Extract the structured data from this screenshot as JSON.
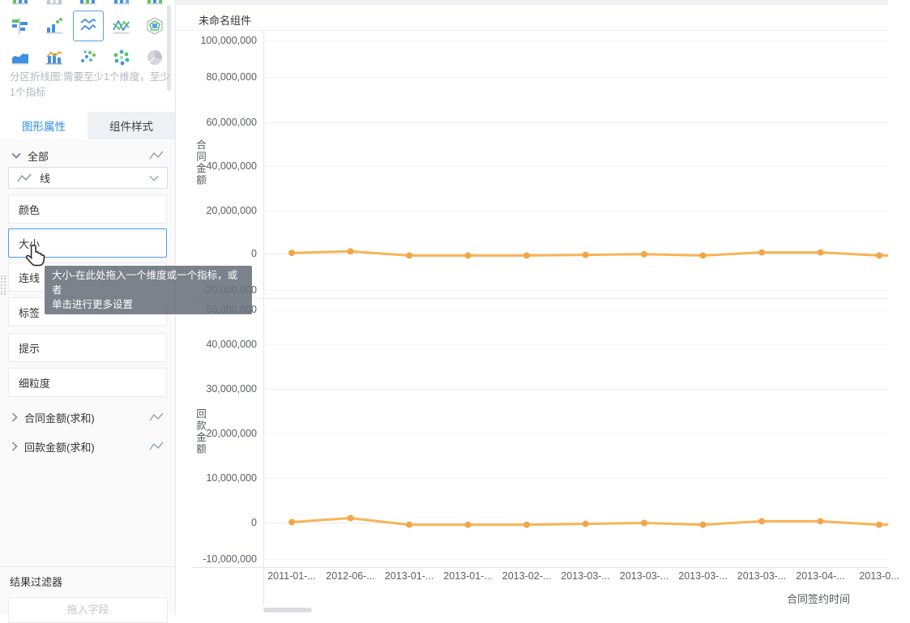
{
  "sidebar": {
    "chart_type_icons": {
      "rows": [
        [
          "column-chart",
          "column-chart-2",
          "column-chart-3",
          "column-chart-4",
          "column-chart-5"
        ],
        [
          "bar-chart",
          "point-column-chart",
          "partition-line-chart",
          "range-line-chart",
          "nested-polygon-chart"
        ],
        [
          "area-chart",
          "combo-bar-line-chart",
          "scatter-plot",
          "bubble-cluster-chart",
          "pie-chart"
        ]
      ],
      "selected": "partition-line-chart"
    },
    "description": "分区折线图:需要至少1个维度，至少1个指标",
    "tabs": [
      {
        "label": "图形属性",
        "active": true
      },
      {
        "label": "组件样式",
        "active": false
      }
    ],
    "all_label": "全部",
    "shape_select_value": "线",
    "properties": [
      "颜色",
      "大小",
      "连线",
      "标签",
      "提示",
      "细粒度"
    ],
    "hovered_property": "大小",
    "metrics": [
      "合同金额(求和)",
      "回款金额(求和)"
    ],
    "result_filter_label": "结果过滤器",
    "drop_placeholder": "拖入字段"
  },
  "tooltip": {
    "line1": "大小-在此处拖入一个维度或一个指标，或者",
    "line2": "单击进行更多设置"
  },
  "main": {
    "component_title": "未命名组件"
  },
  "colors": {
    "accent": "#2b8df0",
    "line": "#f8b455",
    "point": "#f2a64a",
    "tab_inactive_bg": "#eff0f3",
    "tooltip_bg": "#676f7a"
  },
  "chart_data": [
    {
      "type": "line",
      "panel": "top",
      "x": [
        "2011-01-...",
        "2012-06-...",
        "2013-01-...",
        "2013-01-...",
        "2013-02-...",
        "2013-03-...",
        "2013-03-...",
        "2013-03-...",
        "2013-03-...",
        "2013-04-...",
        "2013-0..."
      ],
      "xlabel": "合同签约时间",
      "ylabel": "合同金额",
      "ylim": [
        -20000000,
        100000000
      ],
      "yticks": [
        "100,000,000",
        "80,000,000",
        "60,000,000",
        "40,000,000",
        "20,000,000",
        "0",
        "-20,000,000"
      ],
      "ytick_values": [
        100000000,
        80000000,
        60000000,
        40000000,
        20000000,
        0,
        -20000000
      ],
      "series": [
        {
          "name": "合同金额(求和)",
          "values": [
            300000,
            1000000,
            -900000,
            -900000,
            -900000,
            -600000,
            -300000,
            -900000,
            500000,
            500000,
            -900000
          ]
        }
      ],
      "grid": true,
      "legend": "none"
    },
    {
      "type": "line",
      "panel": "bottom",
      "x": [
        "2011-01-...",
        "2012-06-...",
        "2013-01-...",
        "2013-01-...",
        "2013-02-...",
        "2013-03-...",
        "2013-03-...",
        "2013-03-...",
        "2013-03-...",
        "2013-04-...",
        "2013-0..."
      ],
      "xlabel": "合同签约时间",
      "ylabel": "回款金额",
      "ylim": [
        -10000000,
        50000000
      ],
      "yticks": [
        "50,000,000",
        "40,000,000",
        "30,000,000",
        "20,000,000",
        "10,000,000",
        "0",
        "-10,000,000"
      ],
      "ytick_values": [
        50000000,
        40000000,
        30000000,
        20000000,
        10000000,
        0,
        -10000000
      ],
      "series": [
        {
          "name": "回款金额(求和)",
          "values": [
            100000,
            1000000,
            -500000,
            -500000,
            -500000,
            -300000,
            -100000,
            -500000,
            300000,
            300000,
            -500000
          ]
        }
      ],
      "grid": true,
      "legend": "none"
    }
  ]
}
